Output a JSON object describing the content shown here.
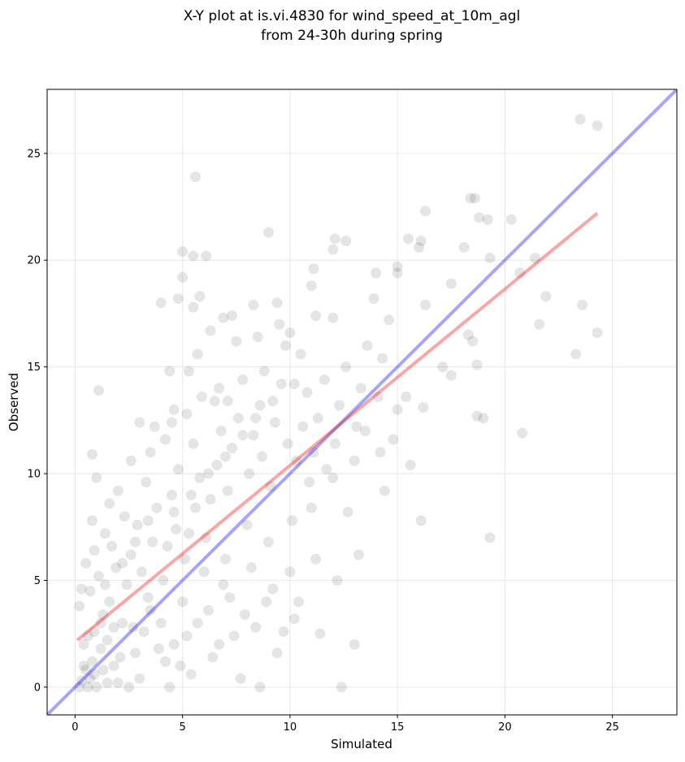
{
  "chart_data": {
    "type": "scatter",
    "title": "X-Y plot at is.vi.4830 for wind_speed_at_10m_agl",
    "subtitle": "from 24-30h during spring",
    "xlabel": "Simulated",
    "ylabel": "Observed",
    "xlim": [
      -1.3,
      28
    ],
    "ylim": [
      -1.3,
      28
    ],
    "xticks": [
      0,
      5,
      10,
      15,
      20,
      25
    ],
    "yticks": [
      0,
      5,
      10,
      15,
      20,
      25
    ],
    "grid": true,
    "colors": {
      "points": "#000000",
      "identity_line": "#0000ee",
      "fit_line": "#ee0000",
      "grid": "#e6e6e6"
    },
    "points": [
      [
        0.3,
        0.3
      ],
      [
        0.5,
        0.8
      ],
      [
        0.8,
        1.2
      ],
      [
        0.4,
        2.0
      ],
      [
        1.0,
        0.0
      ],
      [
        0.6,
        0.0
      ],
      [
        1.2,
        1.8
      ],
      [
        0.9,
        2.6
      ],
      [
        0.2,
        3.8
      ],
      [
        0.7,
        4.5
      ],
      [
        1.1,
        5.2
      ],
      [
        0.5,
        5.8
      ],
      [
        0.9,
        6.4
      ],
      [
        1.3,
        3.4
      ],
      [
        1.5,
        2.2
      ],
      [
        1.8,
        1.0
      ],
      [
        2.0,
        0.2
      ],
      [
        1.6,
        4.0
      ],
      [
        1.9,
        5.6
      ],
      [
        1.4,
        7.2
      ],
      [
        0.8,
        7.8
      ],
      [
        1.0,
        9.8
      ],
      [
        0.8,
        10.9
      ],
      [
        1.1,
        13.9
      ],
      [
        1.6,
        8.6
      ],
      [
        2.2,
        3.0
      ],
      [
        2.4,
        4.8
      ],
      [
        2.6,
        6.2
      ],
      [
        2.8,
        1.6
      ],
      [
        3.0,
        0.4
      ],
      [
        2.5,
        0.0
      ],
      [
        3.2,
        2.6
      ],
      [
        3.4,
        4.2
      ],
      [
        3.1,
        5.4
      ],
      [
        2.9,
        7.6
      ],
      [
        3.6,
        6.8
      ],
      [
        3.8,
        8.4
      ],
      [
        3.3,
        9.6
      ],
      [
        3.5,
        11.0
      ],
      [
        3.0,
        12.4
      ],
      [
        4.0,
        3.0
      ],
      [
        4.2,
        1.2
      ],
      [
        4.4,
        0.0
      ],
      [
        4.6,
        2.0
      ],
      [
        4.1,
        5.0
      ],
      [
        4.3,
        6.6
      ],
      [
        4.7,
        7.4
      ],
      [
        4.5,
        9.0
      ],
      [
        4.8,
        10.2
      ],
      [
        4.2,
        11.6
      ],
      [
        4.6,
        13.0
      ],
      [
        4.4,
        14.8
      ],
      [
        4.0,
        18.0
      ],
      [
        4.8,
        18.2
      ],
      [
        5.0,
        19.2
      ],
      [
        5.0,
        20.4
      ],
      [
        5.5,
        20.2
      ],
      [
        6.1,
        20.2
      ],
      [
        5.6,
        23.9
      ],
      [
        5.0,
        4.0
      ],
      [
        5.2,
        2.4
      ],
      [
        5.4,
        0.6
      ],
      [
        5.1,
        6.0
      ],
      [
        5.3,
        7.2
      ],
      [
        5.6,
        8.4
      ],
      [
        5.8,
        9.8
      ],
      [
        5.5,
        11.4
      ],
      [
        5.2,
        12.8
      ],
      [
        5.9,
        13.6
      ],
      [
        5.7,
        15.6
      ],
      [
        5.5,
        17.8
      ],
      [
        5.8,
        18.3
      ],
      [
        6.0,
        5.4
      ],
      [
        6.2,
        3.6
      ],
      [
        6.4,
        1.4
      ],
      [
        6.1,
        7.0
      ],
      [
        6.3,
        8.8
      ],
      [
        6.6,
        10.4
      ],
      [
        6.8,
        12.0
      ],
      [
        6.5,
        13.4
      ],
      [
        6.3,
        16.7
      ],
      [
        6.9,
        17.3
      ],
      [
        7.0,
        6.0
      ],
      [
        7.2,
        4.2
      ],
      [
        7.4,
        2.4
      ],
      [
        7.1,
        9.2
      ],
      [
        7.3,
        11.2
      ],
      [
        7.6,
        12.6
      ],
      [
        7.8,
        14.4
      ],
      [
        7.5,
        16.2
      ],
      [
        7.3,
        17.4
      ],
      [
        7.7,
        0.4
      ],
      [
        8.0,
        7.6
      ],
      [
        8.2,
        5.6
      ],
      [
        8.4,
        2.8
      ],
      [
        8.1,
        10.0
      ],
      [
        8.3,
        11.8
      ],
      [
        8.6,
        13.2
      ],
      [
        8.8,
        14.8
      ],
      [
        8.5,
        16.4
      ],
      [
        8.3,
        17.9
      ],
      [
        8.6,
        0.0
      ],
      [
        9.0,
        6.8
      ],
      [
        9.2,
        4.6
      ],
      [
        9.4,
        1.6
      ],
      [
        9.1,
        9.4
      ],
      [
        9.3,
        12.4
      ],
      [
        9.6,
        14.2
      ],
      [
        9.8,
        16.0
      ],
      [
        9.5,
        17.0
      ],
      [
        9.0,
        21.3
      ],
      [
        9.4,
        18.0
      ],
      [
        10.0,
        5.4
      ],
      [
        10.2,
        3.2
      ],
      [
        10.1,
        7.8
      ],
      [
        10.3,
        10.6
      ],
      [
        10.6,
        12.2
      ],
      [
        10.8,
        13.8
      ],
      [
        10.5,
        15.6
      ],
      [
        10.0,
        16.6
      ],
      [
        11.0,
        8.4
      ],
      [
        11.2,
        6.0
      ],
      [
        11.4,
        2.5
      ],
      [
        11.1,
        11.0
      ],
      [
        11.3,
        12.6
      ],
      [
        11.6,
        14.4
      ],
      [
        11.2,
        17.4
      ],
      [
        11.0,
        18.8
      ],
      [
        11.1,
        19.6
      ],
      [
        12.0,
        9.8
      ],
      [
        12.2,
        5.0
      ],
      [
        12.4,
        0.0
      ],
      [
        12.1,
        11.4
      ],
      [
        12.3,
        13.2
      ],
      [
        12.6,
        15.0
      ],
      [
        12.0,
        17.3
      ],
      [
        12.0,
        20.5
      ],
      [
        12.1,
        21.0
      ],
      [
        12.6,
        20.9
      ],
      [
        13.0,
        10.6
      ],
      [
        13.2,
        6.2
      ],
      [
        13.0,
        2.0
      ],
      [
        13.1,
        12.2
      ],
      [
        13.3,
        14.0
      ],
      [
        13.6,
        16.0
      ],
      [
        13.9,
        18.2
      ],
      [
        14.0,
        19.4
      ],
      [
        14.2,
        11.0
      ],
      [
        14.4,
        9.2
      ],
      [
        14.1,
        13.6
      ],
      [
        14.3,
        15.4
      ],
      [
        14.6,
        17.2
      ],
      [
        14.8,
        11.6
      ],
      [
        15.0,
        13.0
      ],
      [
        15.0,
        19.4
      ],
      [
        15.0,
        19.7
      ],
      [
        15.6,
        10.4
      ],
      [
        15.4,
        13.6
      ],
      [
        15.5,
        21.0
      ],
      [
        16.0,
        20.6
      ],
      [
        16.1,
        20.9
      ],
      [
        16.1,
        7.8
      ],
      [
        16.2,
        13.1
      ],
      [
        16.3,
        17.9
      ],
      [
        16.3,
        22.3
      ],
      [
        17.1,
        15.0
      ],
      [
        17.5,
        18.9
      ],
      [
        17.5,
        14.6
      ],
      [
        18.1,
        20.6
      ],
      [
        18.3,
        16.5
      ],
      [
        18.4,
        22.9
      ],
      [
        18.6,
        22.9
      ],
      [
        18.5,
        16.2
      ],
      [
        18.7,
        15.1
      ],
      [
        18.7,
        12.7
      ],
      [
        18.8,
        22.0
      ],
      [
        19.0,
        12.6
      ],
      [
        19.2,
        21.9
      ],
      [
        19.3,
        7.0
      ],
      [
        19.3,
        20.1
      ],
      [
        20.3,
        21.9
      ],
      [
        20.7,
        19.4
      ],
      [
        20.8,
        11.9
      ],
      [
        21.4,
        20.1
      ],
      [
        21.6,
        17.0
      ],
      [
        21.9,
        18.3
      ],
      [
        23.3,
        15.6
      ],
      [
        23.5,
        26.6
      ],
      [
        23.6,
        17.9
      ],
      [
        24.3,
        26.3
      ],
      [
        24.3,
        16.6
      ],
      [
        0.9,
        0.6
      ],
      [
        1.5,
        0.2
      ],
      [
        2.1,
        1.4
      ],
      [
        2.7,
        2.8
      ],
      [
        3.5,
        3.6
      ],
      [
        3.9,
        1.8
      ],
      [
        4.9,
        1.0
      ],
      [
        5.7,
        3.0
      ],
      [
        6.7,
        2.0
      ],
      [
        6.9,
        4.8
      ],
      [
        7.9,
        3.4
      ],
      [
        8.9,
        4.0
      ],
      [
        9.7,
        2.6
      ],
      [
        10.4,
        4.0
      ],
      [
        1.7,
        6.6
      ],
      [
        2.3,
        8.0
      ],
      [
        2.0,
        9.2
      ],
      [
        2.6,
        10.6
      ],
      [
        3.7,
        12.2
      ],
      [
        4.5,
        12.4
      ],
      [
        5.3,
        14.8
      ],
      [
        6.7,
        14.0
      ],
      [
        7.1,
        13.4
      ],
      [
        8.7,
        10.8
      ],
      [
        9.9,
        11.4
      ],
      [
        10.9,
        9.6
      ],
      [
        11.7,
        10.2
      ],
      [
        12.7,
        8.2
      ],
      [
        13.5,
        12.0
      ],
      [
        0.4,
        1.0
      ],
      [
        0.6,
        2.4
      ],
      [
        1.2,
        3.0
      ],
      [
        0.3,
        4.6
      ],
      [
        1.4,
        4.8
      ],
      [
        2.2,
        5.8
      ],
      [
        2.8,
        6.8
      ],
      [
        3.4,
        7.8
      ],
      [
        4.6,
        8.2
      ],
      [
        5.4,
        9.0
      ],
      [
        6.2,
        10.0
      ],
      [
        7.0,
        10.8
      ],
      [
        7.8,
        11.8
      ],
      [
        8.4,
        12.6
      ],
      [
        9.2,
        13.4
      ],
      [
        10.2,
        14.2
      ],
      [
        0.2,
        0.0
      ],
      [
        0.7,
        0.4
      ],
      [
        1.3,
        0.8
      ],
      [
        1.8,
        2.8
      ]
    ],
    "fit_line": {
      "x": [
        0.1,
        24.3
      ],
      "y": [
        2.2,
        22.2
      ]
    },
    "identity_line": {
      "x": [
        -1.3,
        28
      ],
      "y": [
        -1.3,
        28
      ]
    }
  }
}
